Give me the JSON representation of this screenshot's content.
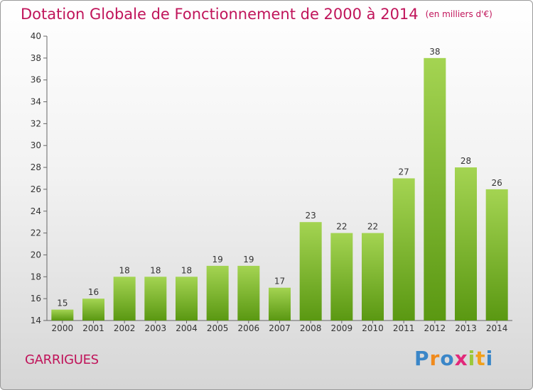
{
  "title": "Dotation Globale de Fonctionnement de 2000 à 2014",
  "unit": "(en milliers d'€)",
  "commune": "GARRIGUES",
  "logo": {
    "letters": [
      "P",
      "r",
      "o",
      "x",
      "i",
      "t",
      "i"
    ],
    "colors": [
      "#3a86c8",
      "#f08a1c",
      "#3a86c8",
      "#e2287a",
      "#9bc83a",
      "#f0a01c",
      "#3a86c8"
    ]
  },
  "colors": {
    "title": "#c0145a",
    "bar_top": "#9ed04b",
    "bar_bottom": "#5b9a14"
  },
  "chart_data": {
    "type": "bar",
    "title": "Dotation Globale de Fonctionnement de 2000 à 2014",
    "categories": [
      "2000",
      "2001",
      "2002",
      "2003",
      "2004",
      "2005",
      "2006",
      "2007",
      "2008",
      "2009",
      "2010",
      "2011",
      "2012",
      "2013",
      "2014"
    ],
    "values": [
      15,
      16,
      18,
      18,
      18,
      19,
      19,
      17,
      23,
      22,
      22,
      27,
      38,
      28,
      26
    ],
    "ylim": [
      14,
      40
    ],
    "yticks": [
      14,
      16,
      18,
      20,
      22,
      24,
      26,
      28,
      30,
      32,
      34,
      36,
      38,
      40
    ],
    "grid": false,
    "xlabel": "",
    "ylabel": ""
  }
}
